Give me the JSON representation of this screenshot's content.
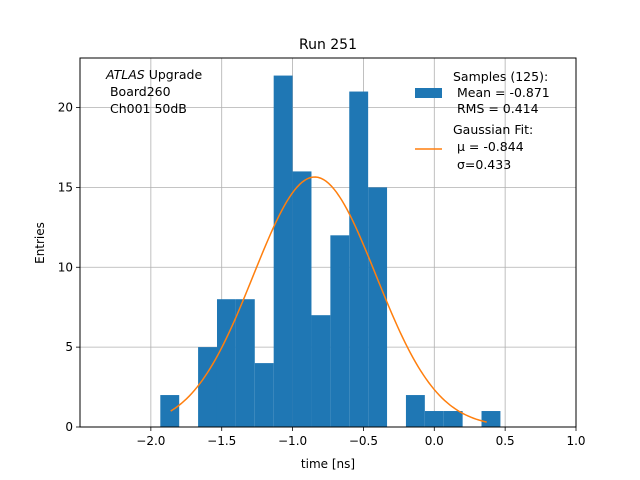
{
  "chart_data": {
    "type": "bar",
    "title": "Run 251",
    "xlabel": "time [ns]",
    "ylabel": "Entries",
    "xlim": [
      -2.5,
      1.0
    ],
    "ylim": [
      0,
      23.1
    ],
    "grid": true,
    "xticks": [
      -2.0,
      -1.5,
      -1.0,
      -0.5,
      0.0,
      0.5,
      1.0
    ],
    "xtick_labels": [
      "−2.0",
      "−1.5",
      "−1.0",
      "−0.5",
      "0.0",
      "0.5",
      "1.0"
    ],
    "yticks": [
      0,
      5,
      10,
      15,
      20
    ],
    "ytick_labels": [
      "0",
      "5",
      "10",
      "15",
      "20"
    ],
    "histogram": {
      "bin_edges": [
        -1.9333,
        -1.8,
        -1.6667,
        -1.5333,
        -1.4,
        -1.2667,
        -1.1333,
        -1.0,
        -0.8667,
        -0.7333,
        -0.6,
        -0.4667,
        -0.3333,
        -0.2,
        -0.0667,
        0.0667,
        0.2,
        0.3333,
        0.4667
      ],
      "counts": [
        2,
        0,
        5,
        8,
        8,
        4,
        22,
        16,
        7,
        12,
        21,
        15,
        0,
        2,
        1,
        1,
        0,
        1
      ],
      "color": "#1f77b4"
    },
    "fit": {
      "type": "gaussian",
      "mu": -0.844,
      "sigma": 0.433,
      "amplitude": 15.65,
      "x_range": [
        -1.86,
        0.37
      ],
      "color": "#ff7f0e"
    },
    "annotation": {
      "italic": "ATLAS",
      "line1_rest": " Upgrade",
      "line2": " Board260",
      "line3": " Ch001 50dB"
    },
    "legend": {
      "placement": "top-right",
      "entries": [
        {
          "kind": "patch",
          "color": "#1f77b4",
          "lines": [
            "Samples (125):",
            " Mean = -0.871",
            " RMS = 0.414"
          ]
        },
        {
          "kind": "line",
          "color": "#ff7f0e",
          "lines": [
            "Gaussian Fit:",
            " μ = -0.844",
            " σ=0.433"
          ]
        }
      ]
    }
  }
}
